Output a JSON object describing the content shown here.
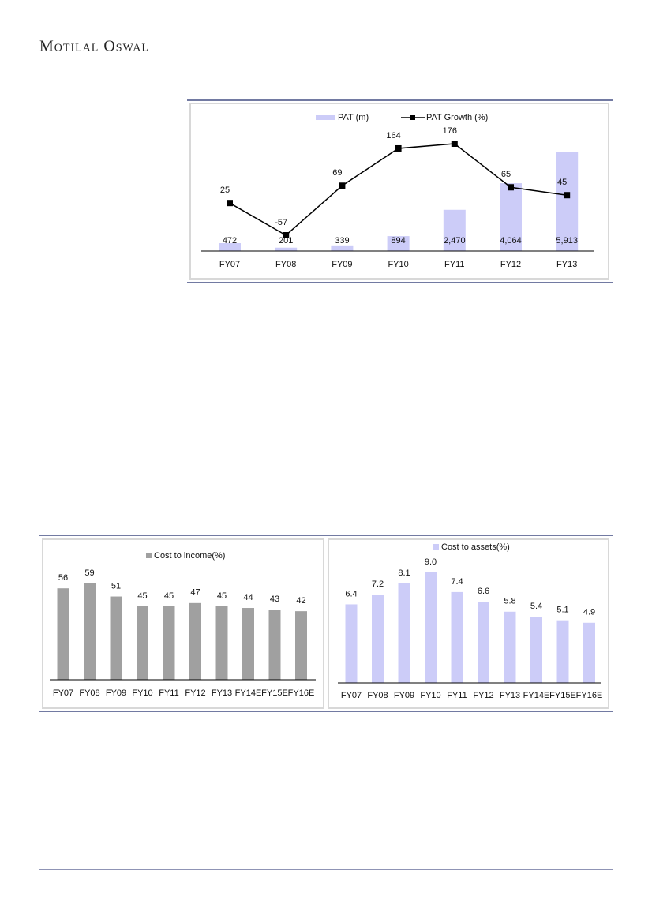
{
  "header": {
    "brand": "Motilal Oswal"
  },
  "chart_data": [
    {
      "type": "combo",
      "categories": [
        "FY07",
        "FY08",
        "FY09",
        "FY10",
        "FY11",
        "FY12",
        "FY13"
      ],
      "series": [
        {
          "name": "PAT (m)",
          "type": "bar",
          "color": "#ccccf8",
          "label_color": "#1a1a80",
          "values": [
            472,
            201,
            339,
            894,
            2470,
            4064,
            5913
          ],
          "value_labels": [
            "472",
            "201",
            "339",
            "894",
            "2,470",
            "4,064",
            "5,913"
          ]
        },
        {
          "name": "PAT Growth (%)",
          "type": "line",
          "color": "#000000",
          "values": [
            25,
            -57,
            69,
            164,
            176,
            65,
            45
          ]
        }
      ],
      "legend": "top"
    },
    {
      "type": "bar",
      "categories": [
        "FY07",
        "FY08",
        "FY09",
        "FY10",
        "FY11",
        "FY12",
        "FY13",
        "FY14E",
        "FY15E",
        "FY16E"
      ],
      "series": [
        {
          "name": "Cost to income(%)",
          "color": "#a0a0a0",
          "values": [
            56,
            59,
            51,
            45,
            45,
            47,
            45,
            44,
            43,
            42
          ]
        }
      ],
      "legend": "top"
    },
    {
      "type": "bar",
      "categories": [
        "FY07",
        "FY08",
        "FY09",
        "FY10",
        "FY11",
        "FY12",
        "FY13",
        "FY14E",
        "FY15E",
        "FY16E"
      ],
      "series": [
        {
          "name": "Cost to assets(%)",
          "color": "#ccccf8",
          "values": [
            6.4,
            7.2,
            8.1,
            9.0,
            7.4,
            6.6,
            5.8,
            5.4,
            5.1,
            4.9
          ],
          "value_labels": [
            "6.4",
            "7.2",
            "8.1",
            "9.0",
            "7.4",
            "6.6",
            "5.8",
            "5.4",
            "5.1",
            "4.9"
          ]
        }
      ],
      "legend": "top"
    }
  ]
}
